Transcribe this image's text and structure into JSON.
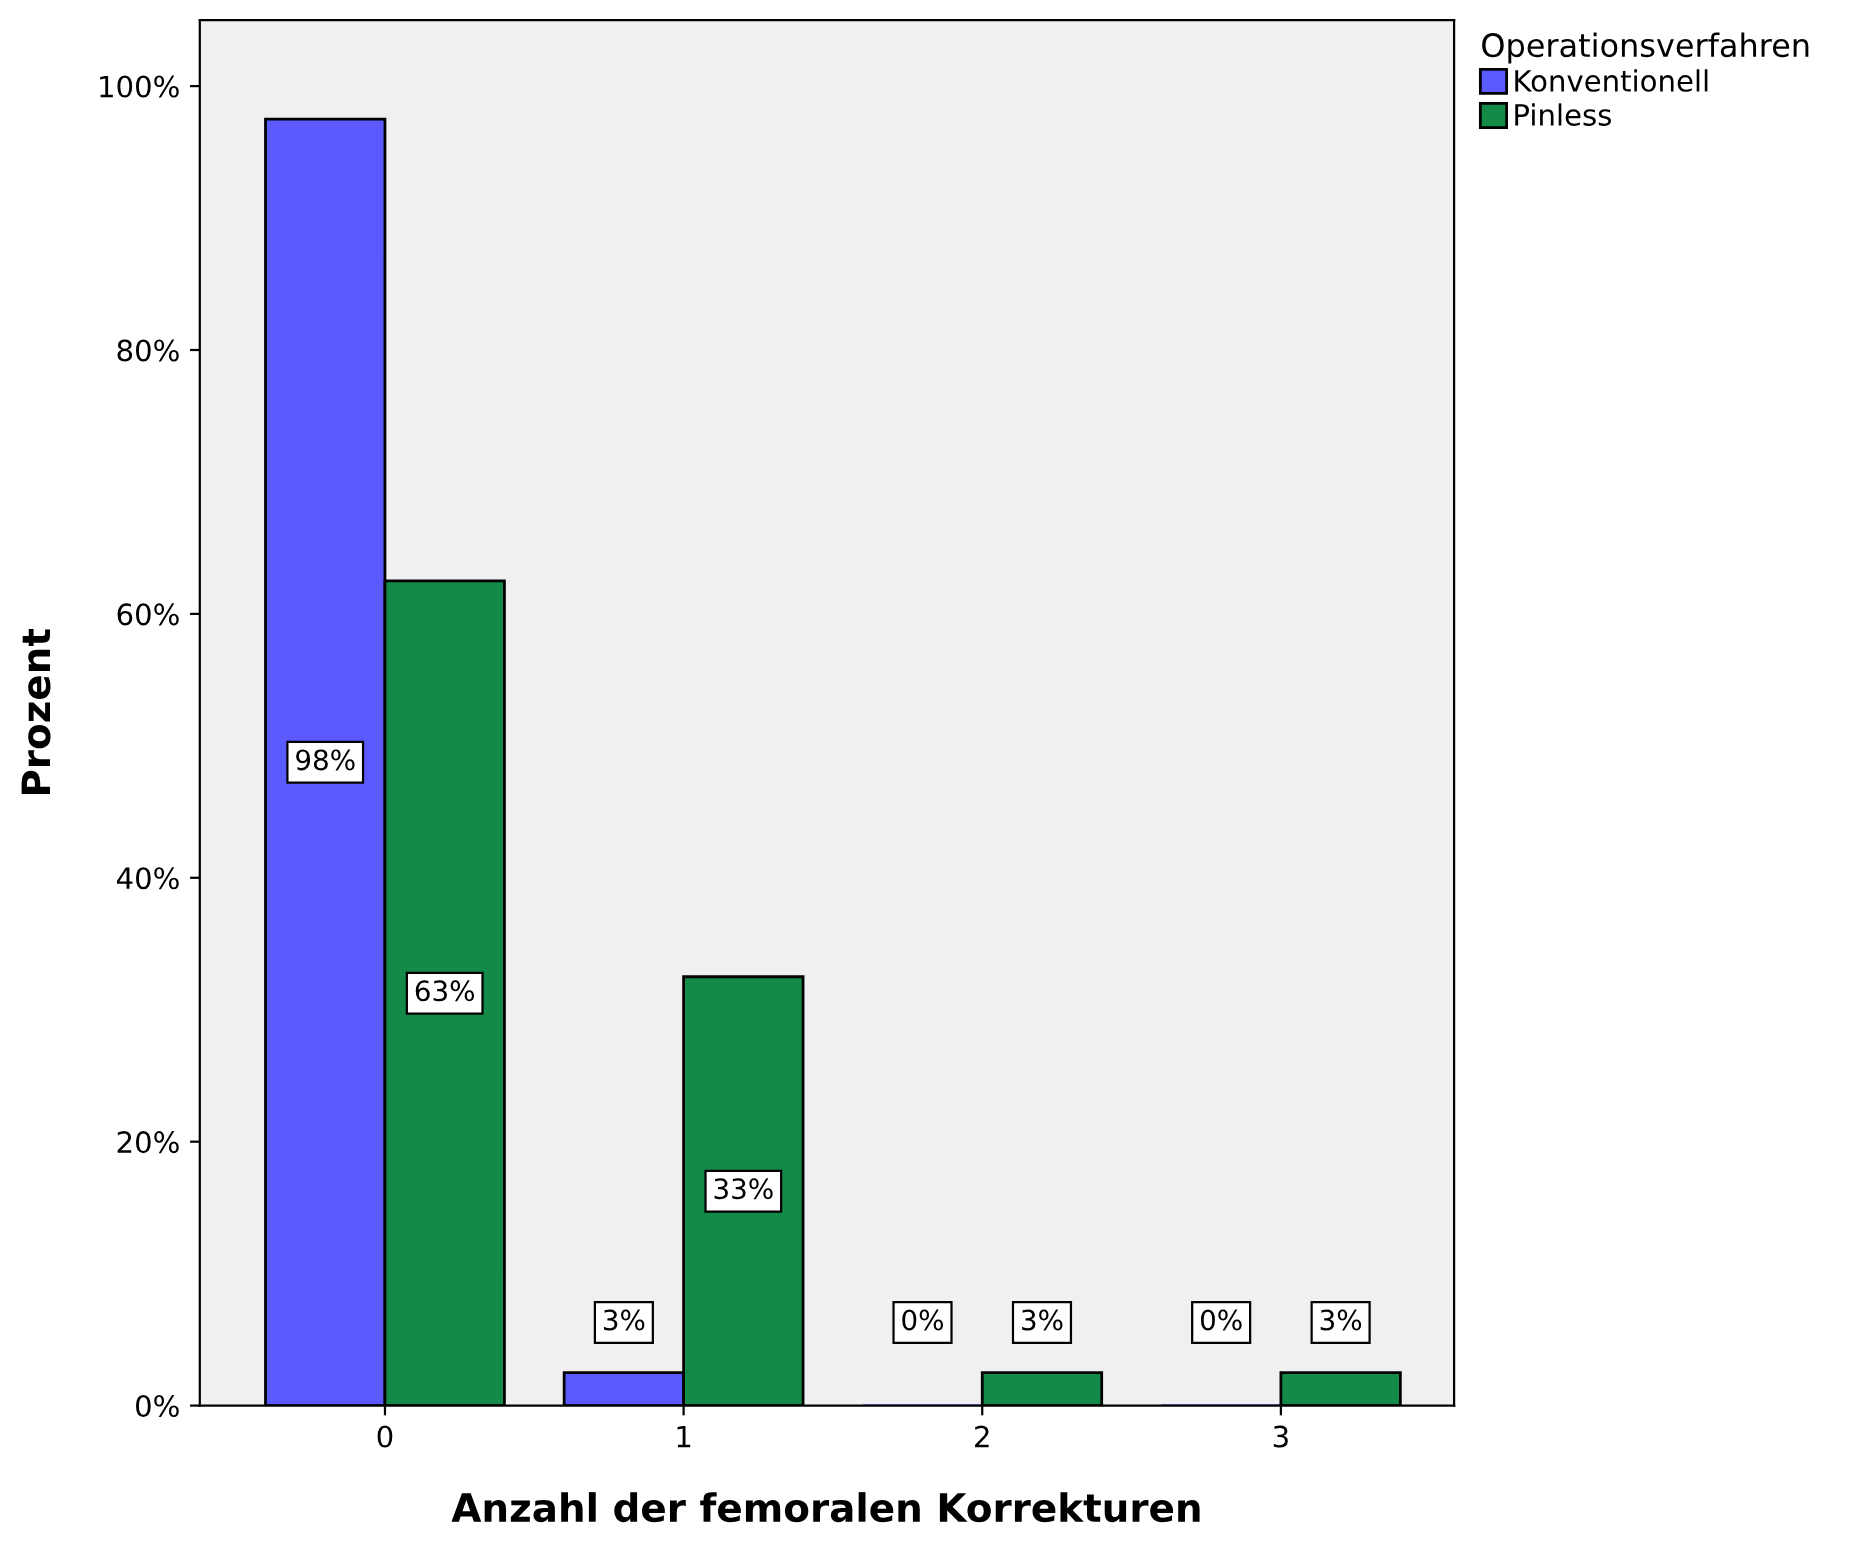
{
  "chart_data": {
    "type": "bar",
    "xlabel": "Anzahl der femoralen Korrekturen",
    "ylabel": "Prozent",
    "legend_title": "Operationsverfahren",
    "legend": "top right",
    "categories": [
      "0",
      "1",
      "2",
      "3"
    ],
    "series": [
      {
        "name": "Konventionell",
        "color": "#5a5aff",
        "values": [
          97.5,
          2.5,
          0,
          0
        ],
        "value_labels": [
          "98%",
          "3%",
          "0%",
          "0%"
        ]
      },
      {
        "name": "Pinless",
        "color": "#138a47",
        "values": [
          62.5,
          32.5,
          2.5,
          2.5
        ],
        "value_labels": [
          "63%",
          "33%",
          "3%",
          "3%"
        ]
      }
    ],
    "ylim": [
      0,
      105
    ],
    "yticks": [
      {
        "value": 0,
        "label": "0%"
      },
      {
        "value": 20,
        "label": "20%"
      },
      {
        "value": 40,
        "label": "40%"
      },
      {
        "value": 60,
        "label": "60%"
      },
      {
        "value": 80,
        "label": "80%"
      },
      {
        "value": 100,
        "label": "100%"
      }
    ],
    "grid": false
  }
}
